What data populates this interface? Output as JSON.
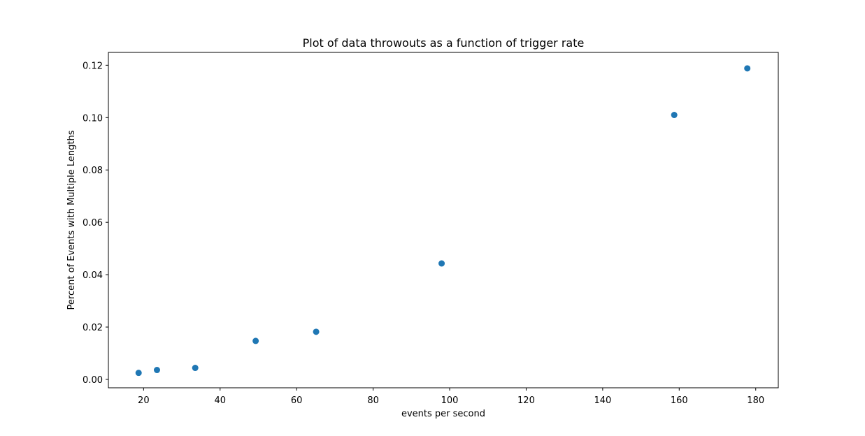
{
  "chart_data": {
    "type": "scatter",
    "title": "Plot of data throwouts as a function of trigger rate",
    "xlabel": "events per second",
    "ylabel": "Percent of Events with Multiple Lengths",
    "xlim": [
      10.8,
      185.9
    ],
    "ylim": [
      -0.0032,
      0.1249
    ],
    "xticks": [
      20,
      40,
      60,
      80,
      100,
      120,
      140,
      160,
      180
    ],
    "xtick_labels": [
      "20",
      "40",
      "60",
      "80",
      "100",
      "120",
      "140",
      "160",
      "180"
    ],
    "yticks": [
      0.0,
      0.02,
      0.04,
      0.06,
      0.08,
      0.1,
      0.12
    ],
    "ytick_labels": [
      "0.00",
      "0.02",
      "0.04",
      "0.06",
      "0.08",
      "0.10",
      "0.12"
    ],
    "grid": false,
    "series": [
      {
        "color": "#1f77b4",
        "points": [
          {
            "x": 18.7,
            "y": 0.0025
          },
          {
            "x": 23.5,
            "y": 0.0036
          },
          {
            "x": 33.5,
            "y": 0.0044
          },
          {
            "x": 49.3,
            "y": 0.0147
          },
          {
            "x": 65.1,
            "y": 0.0182
          },
          {
            "x": 97.9,
            "y": 0.0443
          },
          {
            "x": 158.7,
            "y": 0.101
          },
          {
            "x": 177.8,
            "y": 0.1188
          }
        ]
      }
    ]
  }
}
